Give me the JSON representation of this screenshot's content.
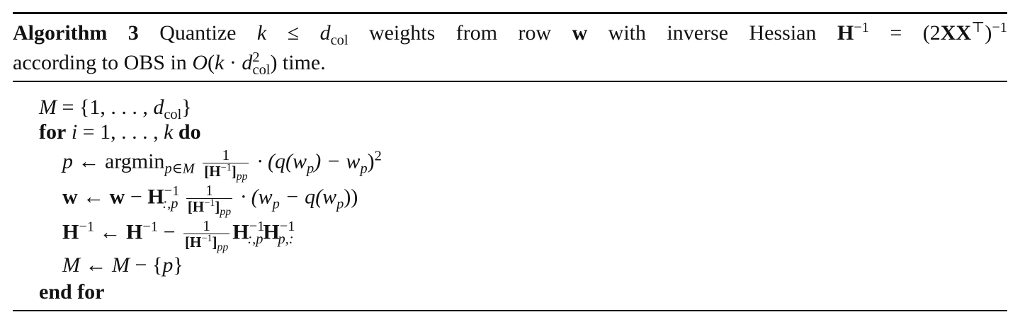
{
  "header": {
    "label": "Algorithm 3",
    "line1": {
      "t1": "Quantize",
      "k": "k",
      "leq": "≤",
      "d": "d",
      "col": "col",
      "t2": "weights from row",
      "w": "w",
      "t3": "with inverse Hessian",
      "H": "H",
      "inv": "−1",
      "eq": "=",
      "open": "(2",
      "XX": "XX",
      "T": "⊤",
      "close": ")",
      "inv2": "−1"
    },
    "line2": {
      "t1": "according to OBS in",
      "O": "O",
      "open": "(",
      "k": "k",
      "dot": " · ",
      "d": "d",
      "sq": "2",
      "col": "col",
      "close": ") time."
    }
  },
  "body": {
    "l1": {
      "M": "M",
      "rest": " = {1, . . . , ",
      "d": "d",
      "col": "col",
      "end": "}"
    },
    "l2": {
      "for": "for",
      "i": "i",
      "mid": " = 1, . . . , ",
      "k": "k",
      "do": "do"
    },
    "l3": {
      "p": "p",
      "arrow": " ← argmin",
      "sub": "p∈M",
      "num": "1",
      "den": "[H",
      "deninv": "−1",
      "denclose": "]",
      "densub": "pp",
      "rest": " · (q(w",
      "wp": "p",
      "mid": ") − w",
      "wp2": "p",
      "close": ")",
      "sq": "2"
    },
    "l4": {
      "w": "w",
      "arrow": " ← ",
      "w2": "w",
      "minus": " − ",
      "H": "H",
      "inv": "−1",
      "sub": ":,p",
      "num": "1",
      "den": "[H",
      "deninv": "−1",
      "denclose": "]",
      "densub": "pp",
      "rest": " · (w",
      "wp": "p",
      "mid": " − q(w",
      "wp2": "p",
      "close": "))"
    },
    "l5": {
      "H": "H",
      "inv": "−1",
      "arrow": " ← ",
      "H2": "H",
      "inv2": "−1",
      "minus": " − ",
      "num": "1",
      "den": "[H",
      "deninv": "−1",
      "denclose": "]",
      "densub": "pp",
      "H3": "H",
      "inv3": "−1",
      "sub3": ":,p",
      "H4": "H",
      "inv4": "−1",
      "sub4": "p,:"
    },
    "l6": {
      "M": "M",
      "arrow": " ← ",
      "M2": "M",
      "rest": " − {",
      "p": "p",
      "end": "}"
    },
    "l7": {
      "endfor": "end for"
    }
  }
}
